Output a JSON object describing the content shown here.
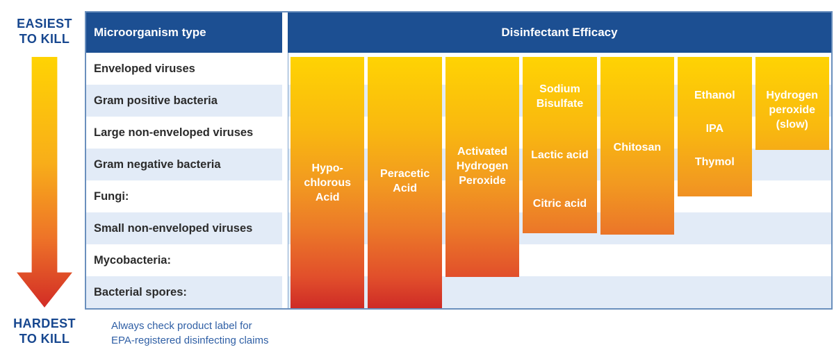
{
  "legend": {
    "easiest": "EASIEST\nTO KILL",
    "hardest": "HARDEST\nTO KILL"
  },
  "table": {
    "col1_header": "Microorganism type",
    "col2_header": "Disinfectant Efficacy",
    "rows": [
      "Enveloped viruses",
      "Gram positive bacteria",
      "Large non-enveloped viruses",
      "Gram negative bacteria",
      "Fungi:",
      "Small non-enveloped viruses",
      "Mycobacteria:",
      "Bacterial spores:"
    ]
  },
  "bars": [
    {
      "labels": [
        {
          "text": "Hypo-\nchlorous\nAcid"
        }
      ]
    },
    {
      "labels": [
        {
          "text": "Peracetic\nAcid"
        }
      ]
    },
    {
      "labels": [
        {
          "text": "Activated\nHydrogen\nPeroxide"
        }
      ]
    },
    {
      "labels": [
        {
          "text": "Sodium\nBisulfate"
        },
        {
          "text": "Lactic acid"
        },
        {
          "text": "Citric acid"
        }
      ]
    },
    {
      "labels": [
        {
          "text": "Chitosan"
        }
      ]
    },
    {
      "labels": [
        {
          "text": "Ethanol"
        },
        {
          "text": "IPA"
        },
        {
          "text": "Thymol"
        }
      ]
    },
    {
      "labels": [
        {
          "text": "Hydrogen\nperoxide\n(slow)"
        }
      ]
    }
  ],
  "footnote": "Always check product label for\nEPA-registered disinfecting claims",
  "colors": {
    "header_blue": "#1C4F92",
    "row_alt_blue": "#E2EBF7",
    "table_border": "#6A8FBD",
    "bar_gradient_top": "#FFD303",
    "bar_gradient_mid": "#F0822A",
    "bar_gradient_bottom": "#CE2B26",
    "kill_label_navy": "#17478F",
    "footnote_blue": "#2F5FA5",
    "row_text": "#2B2B2B"
  },
  "chart_data": {
    "type": "bar",
    "title": "Disinfectant Efficacy",
    "orientation": "vertical bars descending from top; longer bar = effective against more (harder-to-kill) microorganism classes",
    "y_axis_categories_top_to_bottom": [
      "Enveloped viruses",
      "Gram positive bacteria",
      "Large non-enveloped viruses",
      "Gram negative bacteria",
      "Fungi:",
      "Small non-enveloped viruses",
      "Mycobacteria:",
      "Bacterial spores:"
    ],
    "y_axis_note": "Top = easiest to kill, bottom = hardest to kill",
    "categories": [
      "Hypochlorous Acid",
      "Peracetic Acid",
      "Activated Hydrogen Peroxide",
      "Sodium Bisulfate / Lactic acid / Citric acid",
      "Chitosan",
      "Ethanol / IPA / Thymol",
      "Hydrogen peroxide (slow)"
    ],
    "values_microorganism_rows_covered": [
      8,
      8,
      7,
      5.5,
      5.6,
      4.4,
      3
    ],
    "legend_position": "none",
    "grid": "off",
    "annotation": "Always check product label for EPA-registered disinfecting claims"
  }
}
